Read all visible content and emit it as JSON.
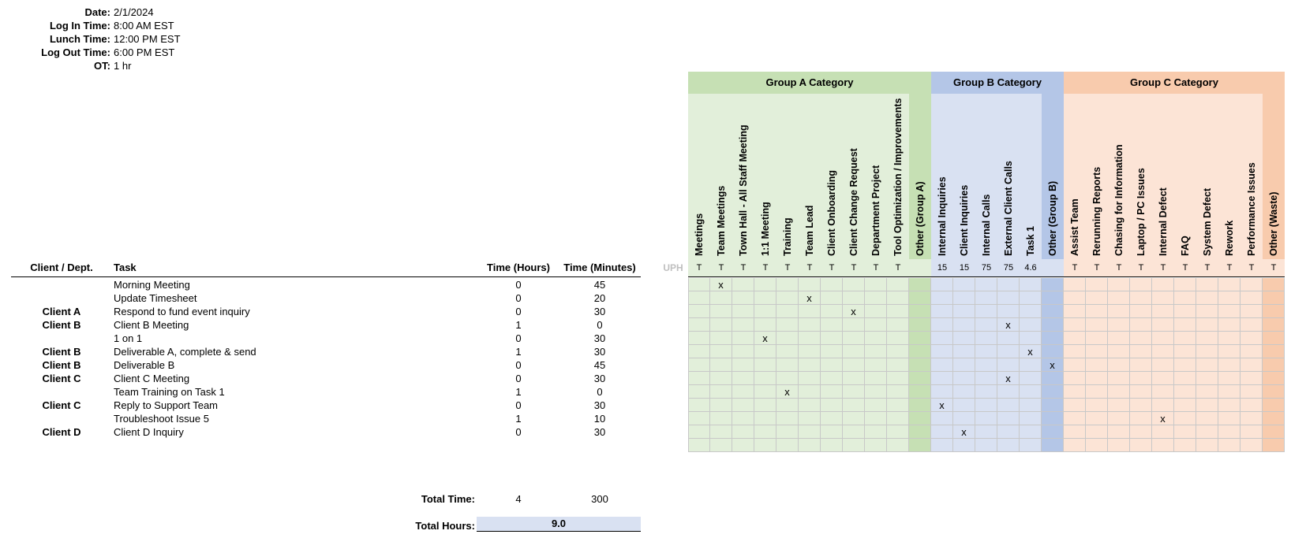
{
  "header": {
    "rows": [
      {
        "label": "Date:",
        "value": "2/1/2024"
      },
      {
        "label": "Log In Time:",
        "value": "8:00 AM EST"
      },
      {
        "label": "Lunch Time:",
        "value": "12:00 PM EST"
      },
      {
        "label": "Log Out Time:",
        "value": "6:00 PM EST"
      },
      {
        "label": "OT:",
        "value": "1 hr"
      }
    ]
  },
  "table": {
    "headers": {
      "client": "Client / Dept.",
      "task": "Task",
      "hours": "Time (Hours)",
      "minutes": "Time (Minutes)",
      "uph": "UPH"
    },
    "rows": [
      {
        "client": "",
        "task": "Morning Meeting",
        "hours": "0",
        "minutes": "45",
        "mark": 1
      },
      {
        "client": "",
        "task": "Update Timesheet",
        "hours": "0",
        "minutes": "20",
        "mark": 5
      },
      {
        "client": "Client A",
        "task": "Respond to fund event inquiry",
        "hours": "0",
        "minutes": "30",
        "mark": 7
      },
      {
        "client": "Client B",
        "task": "Client B Meeting",
        "hours": "1",
        "minutes": "0",
        "mark": 14
      },
      {
        "client": "",
        "task": "1 on 1",
        "hours": "0",
        "minutes": "30",
        "mark": 3
      },
      {
        "client": "Client B",
        "task": "Deliverable A, complete & send",
        "hours": "1",
        "minutes": "30",
        "mark": 15
      },
      {
        "client": "Client B",
        "task": "Deliverable B",
        "hours": "0",
        "minutes": "45",
        "mark": 16
      },
      {
        "client": "Client C",
        "task": "Client C Meeting",
        "hours": "0",
        "minutes": "30",
        "mark": 14
      },
      {
        "client": "",
        "task": "Team Training on Task 1",
        "hours": "1",
        "minutes": "0",
        "mark": 4
      },
      {
        "client": "Client C",
        "task": "Reply to Support Team",
        "hours": "0",
        "minutes": "30",
        "mark": 11
      },
      {
        "client": "",
        "task": "Troubleshoot Issue 5",
        "hours": "1",
        "minutes": "10",
        "mark": 21
      },
      {
        "client": "Client D",
        "task": "Client D Inquiry",
        "hours": "0",
        "minutes": "30",
        "mark": 12
      },
      {
        "client": "",
        "task": "",
        "hours": "",
        "minutes": "",
        "mark": -1
      }
    ],
    "mark_symbol": "x"
  },
  "totals": {
    "total_time_label": "Total Time:",
    "total_hours_value": "4",
    "total_minutes_value": "300",
    "total_hours_label": "Total Hours:",
    "total_hours": "9.0"
  },
  "categories": [
    {
      "name": "Group A Category",
      "head_color": "#c6e0b4",
      "body_color": "#e2efda",
      "other_color": "#c6e0b4",
      "columns": [
        {
          "label": "Meetings",
          "uph": "T"
        },
        {
          "label": "Team Meetings",
          "uph": "T"
        },
        {
          "label": "Town Hall - All Staff Meeting",
          "uph": "T"
        },
        {
          "label": "1:1 Meeting",
          "uph": "T"
        },
        {
          "label": "Training",
          "uph": "T"
        },
        {
          "label": "Team Lead",
          "uph": "T"
        },
        {
          "label": "Client Onboarding",
          "uph": "T"
        },
        {
          "label": "Client Change Request",
          "uph": "T"
        },
        {
          "label": "Department Project",
          "uph": "T"
        },
        {
          "label": "Tool Optimization / Improvements",
          "uph": "T"
        },
        {
          "label": "Other (Group A)",
          "uph": ""
        }
      ]
    },
    {
      "name": "Group B Category",
      "head_color": "#b4c6e7",
      "body_color": "#d9e1f2",
      "other_color": "#b4c6e7",
      "columns": [
        {
          "label": "Internal Inquiries",
          "uph": "15"
        },
        {
          "label": "Client Inquiries",
          "uph": "15"
        },
        {
          "label": "Internal Calls",
          "uph": "75"
        },
        {
          "label": "External Client Calls",
          "uph": "75"
        },
        {
          "label": "Task 1",
          "uph": "4.6"
        },
        {
          "label": "Other (Group B)",
          "uph": ""
        }
      ]
    },
    {
      "name": "Group C Category",
      "head_color": "#f8cbad",
      "body_color": "#fce4d6",
      "other_color": "#f8cbad",
      "columns": [
        {
          "label": "Assist Team",
          "uph": "T"
        },
        {
          "label": "Rerunning Reports",
          "uph": "T"
        },
        {
          "label": "Chasing for Information",
          "uph": "T"
        },
        {
          "label": "Laptop / PC Issues",
          "uph": "T"
        },
        {
          "label": "Internal Defect",
          "uph": "T"
        },
        {
          "label": "FAQ",
          "uph": "T"
        },
        {
          "label": "System Defect",
          "uph": "T"
        },
        {
          "label": "Rework",
          "uph": "T"
        },
        {
          "label": "Performance Issues",
          "uph": "T"
        },
        {
          "label": "Other (Waste)",
          "uph": "T"
        }
      ]
    }
  ]
}
